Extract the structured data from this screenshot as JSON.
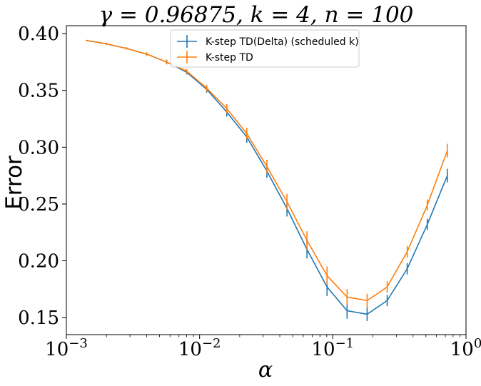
{
  "chart_data": {
    "type": "line",
    "title": "γ = 0.96875, k = 4, n = 100",
    "xlabel": "α",
    "ylabel": "Error",
    "xscale": "log",
    "xlim": [
      0.001,
      1
    ],
    "ylim": [
      0.135,
      0.407
    ],
    "grid": false,
    "legend_position": "top-center",
    "x_ticks": [
      {
        "value": 0.001,
        "base": "10",
        "exp": "−3"
      },
      {
        "value": 0.01,
        "base": "10",
        "exp": "−2"
      },
      {
        "value": 0.1,
        "base": "10",
        "exp": "−1"
      },
      {
        "value": 1,
        "base": "10",
        "exp": "0"
      }
    ],
    "y_ticks": [
      {
        "value": 0.15,
        "label": "0.15"
      },
      {
        "value": 0.2,
        "label": "0.20"
      },
      {
        "value": 0.25,
        "label": "0.25"
      },
      {
        "value": 0.3,
        "label": "0.30"
      },
      {
        "value": 0.35,
        "label": "0.35"
      },
      {
        "value": 0.4,
        "label": "0.40"
      }
    ],
    "x": [
      0.00141,
      0.002,
      0.00283,
      0.004,
      0.00566,
      0.008,
      0.0113,
      0.016,
      0.0226,
      0.032,
      0.0453,
      0.064,
      0.0905,
      0.128,
      0.181,
      0.256,
      0.362,
      0.512,
      0.724
    ],
    "series": [
      {
        "name": "K-step TD(Delta) (scheduled k)",
        "color": "#1f77b4",
        "values": [
          0.394,
          0.391,
          0.387,
          0.382,
          0.375,
          0.366,
          0.351,
          0.331,
          0.309,
          0.279,
          0.246,
          0.21,
          0.177,
          0.156,
          0.153,
          0.165,
          0.193,
          0.232,
          0.275
        ],
        "errors": [
          0.0005,
          0.001,
          0.001,
          0.0015,
          0.002,
          0.002,
          0.003,
          0.004,
          0.005,
          0.006,
          0.007,
          0.008,
          0.008,
          0.007,
          0.006,
          0.005,
          0.005,
          0.005,
          0.006
        ]
      },
      {
        "name": "K-step TD",
        "color": "#ff7f0e",
        "values": [
          0.394,
          0.391,
          0.387,
          0.382,
          0.375,
          0.367,
          0.352,
          0.334,
          0.312,
          0.283,
          0.252,
          0.218,
          0.187,
          0.168,
          0.165,
          0.177,
          0.208,
          0.249,
          0.297
        ],
        "errors": [
          0.0005,
          0.001,
          0.001,
          0.0015,
          0.002,
          0.002,
          0.003,
          0.004,
          0.005,
          0.006,
          0.007,
          0.008,
          0.008,
          0.007,
          0.006,
          0.005,
          0.005,
          0.005,
          0.006
        ]
      }
    ]
  }
}
